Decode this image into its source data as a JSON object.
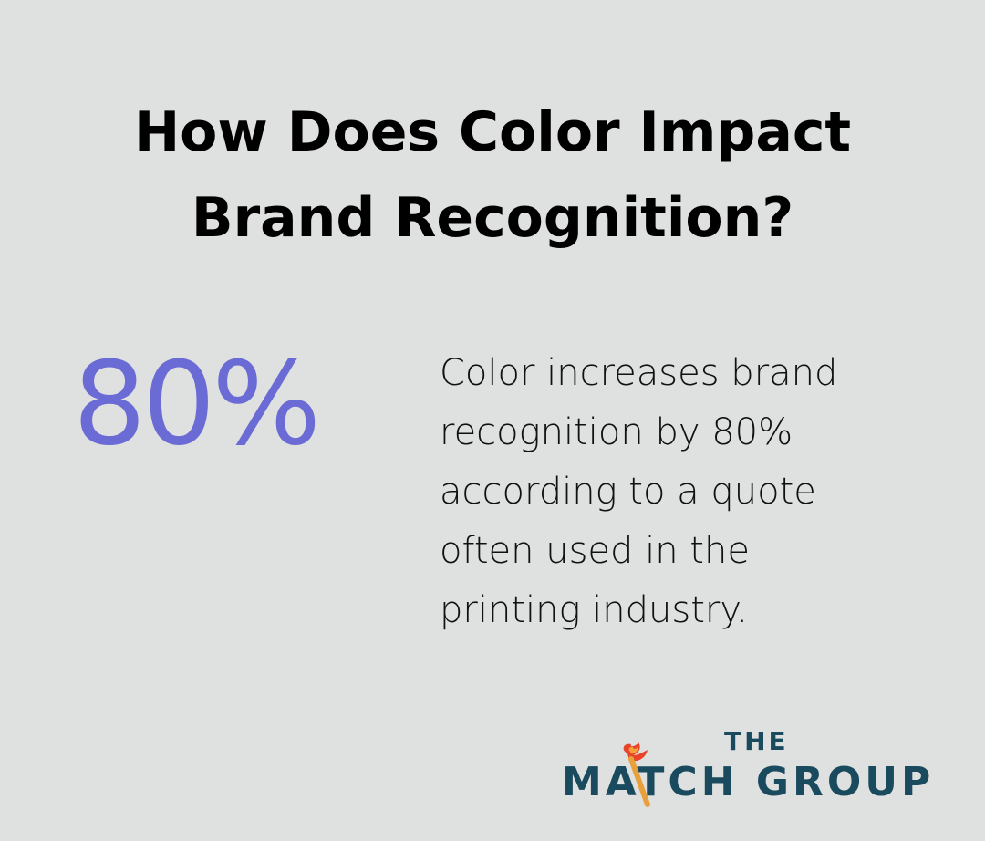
{
  "title": {
    "line1": "How Does Color Impact",
    "line2": "Brand Recognition?"
  },
  "stat": {
    "value": "80%"
  },
  "description": {
    "lines": [
      "Color increases brand",
      "recognition by 80%",
      "according to a quote",
      "often used in the",
      "printing industry."
    ]
  },
  "logo": {
    "the": "THE",
    "name": "MATCH GROUP",
    "colors": {
      "text": "#1a4a5e",
      "flame": "#e8442a",
      "flame_inner": "#f6a03a",
      "stick": "#e8a13a"
    }
  },
  "colors": {
    "background": "#dfe0e0",
    "accent": "#6b6bd6",
    "title": "#000000"
  }
}
